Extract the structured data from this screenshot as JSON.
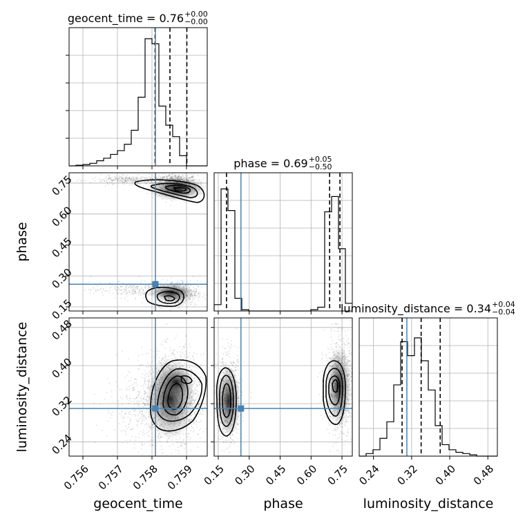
{
  "chart_data": {
    "type": "corner",
    "parameters": [
      "geocent_time",
      "phase",
      "luminosity_distance"
    ],
    "axis_labels": {
      "geocent_time": "geocent_time",
      "phase": "phase",
      "luminosity_distance": "luminosity_distance"
    },
    "titles": [
      {
        "param": "geocent_time",
        "text": "geocent_time = 0.76",
        "plus": "+0.00",
        "minus": "−0.00"
      },
      {
        "param": "phase",
        "text": "phase = 0.69",
        "plus": "+0.05",
        "minus": "−0.50"
      },
      {
        "param": "luminosity_distance",
        "text": "luminosity_distance = 0.34",
        "plus": "+0.04",
        "minus": "−0.04"
      }
    ],
    "ranges": {
      "geocent_time": [
        0.7556,
        0.7596
      ],
      "phase": [
        0.13,
        0.8
      ],
      "luminosity_distance": [
        0.21,
        0.5
      ]
    },
    "ticks": {
      "geocent_time": [
        "0.756",
        "0.757",
        "0.758",
        "0.759"
      ],
      "phase": [
        "0.15",
        "0.30",
        "0.45",
        "0.60",
        "0.75"
      ],
      "luminosity_distance": [
        "0.24",
        "0.32",
        "0.40",
        "0.48"
      ]
    },
    "tick_values": {
      "geocent_time": [
        0.756,
        0.757,
        0.758,
        0.759
      ],
      "phase": [
        0.15,
        0.3,
        0.45,
        0.6,
        0.75
      ],
      "luminosity_distance": [
        0.24,
        0.32,
        0.4,
        0.48
      ]
    },
    "truth": {
      "geocent_time": 0.7581,
      "phase": 0.26,
      "luminosity_distance": 0.31
    },
    "quantiles": {
      "geocent_time": [
        0.75809,
        0.75852,
        0.75901
      ],
      "phase": [
        0.19,
        0.69,
        0.74
      ],
      "luminosity_distance": [
        0.3,
        0.34,
        0.38
      ]
    },
    "histograms": {
      "geocent_time": {
        "edges_start": 0.7556,
        "bin_width": 0.0002,
        "counts": [
          0,
          0.005,
          0.01,
          0.02,
          0.04,
          0.06,
          0.09,
          0.12,
          0.17,
          0.28,
          0.54,
          1.0,
          0.96,
          0.47,
          0.32,
          0.23,
          0.08,
          0,
          0,
          0
        ]
      },
      "phase": {
        "edges_start": 0.13,
        "bin_width": 0.0335,
        "counts": [
          0.05,
          0.96,
          0.79,
          0.1,
          0.01,
          0,
          0,
          0,
          0,
          0,
          0,
          0,
          0,
          0,
          0.01,
          0.03,
          0.78,
          0.9,
          0.49,
          0.06
        ]
      },
      "luminosity_distance": {
        "edges_start": 0.21,
        "bin_width": 0.0145,
        "counts": [
          0,
          0.02,
          0.05,
          0.14,
          0.27,
          0.56,
          0.9,
          0.79,
          0.93,
          0.75,
          0.52,
          0.24,
          0.09,
          0.05,
          0.03,
          0.02,
          0.01,
          0,
          0,
          0
        ]
      }
    },
    "grid": true
  }
}
